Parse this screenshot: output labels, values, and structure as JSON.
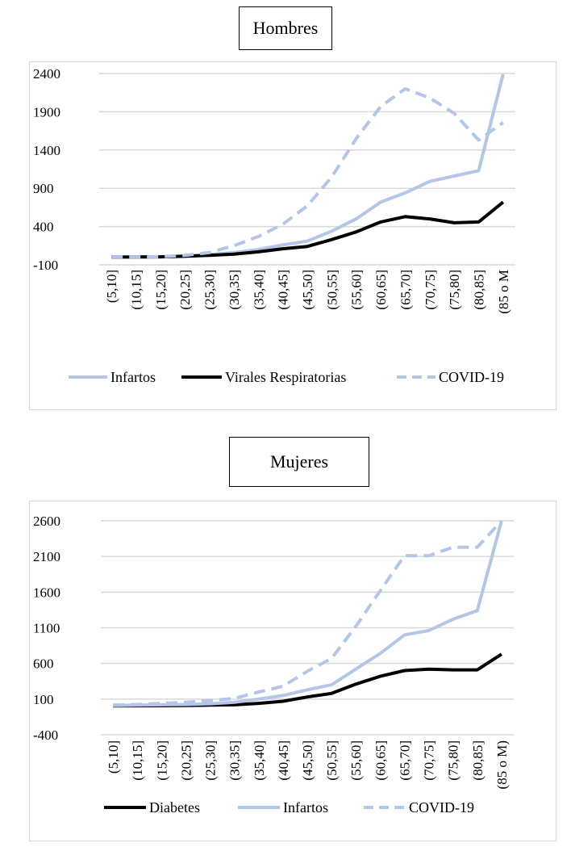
{
  "colors": {
    "infartos": "#b4c6e7",
    "virales": "#000000",
    "covid": "#b4c6e7",
    "diabetes": "#000000",
    "grid": "#d9d9d9"
  },
  "chart_data": [
    {
      "type": "line",
      "title": "Hombres",
      "categories": [
        "(5,10]",
        "(10,15]",
        "(15,20]",
        "(20,25]",
        "(25,30]",
        "(30,35]",
        "(35,40]",
        "(40,45]",
        "(45,50]",
        "(50,55]",
        "(55,60]",
        "(60,65]",
        "(65,70]",
        "(70,75]",
        "(75,80]",
        "(80,85]",
        "(85 o M"
      ],
      "yticks": [
        "-100",
        "400",
        "900",
        "1400",
        "1900",
        "2400"
      ],
      "ylim": [
        -100,
        2400
      ],
      "grid": true,
      "legend_position": "bottom",
      "series": [
        {
          "name": "Infartos",
          "style": "solid-light",
          "values": [
            2,
            3,
            5,
            15,
            35,
            60,
            100,
            160,
            210,
            340,
            500,
            720,
            840,
            990,
            1060,
            1130,
            2390
          ]
        },
        {
          "name": "Virales Respiratorias",
          "style": "solid-dark",
          "values": [
            1,
            2,
            4,
            12,
            25,
            40,
            70,
            110,
            140,
            230,
            330,
            460,
            530,
            500,
            450,
            460,
            720
          ]
        },
        {
          "name": "COVID-19",
          "style": "dashed-light",
          "values": [
            3,
            4,
            6,
            25,
            60,
            150,
            270,
            430,
            670,
            1050,
            1550,
            1970,
            2200,
            2080,
            1880,
            1530,
            1760
          ]
        }
      ]
    },
    {
      "type": "line",
      "title": "Mujeres",
      "categories": [
        "(5,10]",
        "(10,15]",
        "(15,20]",
        "(20,25]",
        "(25,30]",
        "(30,35]",
        "(35,40]",
        "(40,45]",
        "(45,50]",
        "(50,55]",
        "(55,60]",
        "(60,65]",
        "(65,70]",
        "(70,75]",
        "(75,80]",
        "(80,85]",
        "(85 o M)"
      ],
      "yticks": [
        "-400",
        "100",
        "600",
        "1100",
        "1600",
        "2100",
        "2600"
      ],
      "ylim": [
        -400,
        2600
      ],
      "grid": true,
      "legend_position": "bottom",
      "series": [
        {
          "name": "Diabetes",
          "style": "solid-dark",
          "values": [
            5,
            6,
            8,
            10,
            15,
            20,
            40,
            70,
            130,
            180,
            310,
            420,
            500,
            520,
            510,
            510,
            730
          ]
        },
        {
          "name": "Infartos",
          "style": "solid-light",
          "values": [
            10,
            15,
            20,
            25,
            35,
            55,
            100,
            150,
            230,
            300,
            520,
            740,
            1000,
            1060,
            1220,
            1340,
            2600
          ]
        },
        {
          "name": "COVID-19",
          "style": "dashed-light",
          "values": [
            15,
            25,
            40,
            55,
            80,
            110,
            200,
            280,
            490,
            670,
            1120,
            1620,
            2110,
            2110,
            2230,
            2230,
            2600
          ]
        }
      ]
    }
  ]
}
